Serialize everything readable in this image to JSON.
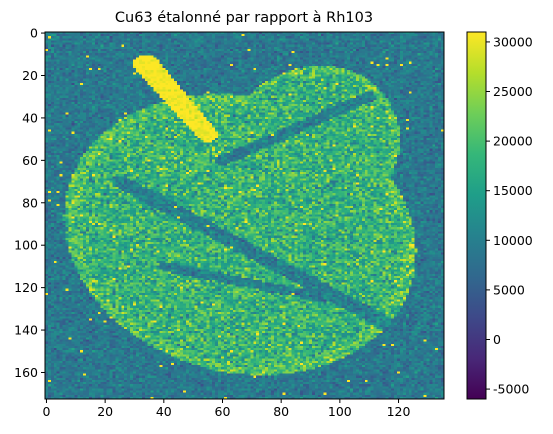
{
  "chart_data": {
    "type": "heatmap",
    "title": "Cu63 étalonné par rapport à Rh103",
    "xlabel": "",
    "ylabel": "",
    "image_shape": {
      "rows": 173,
      "cols": 136
    },
    "x_ticks": [
      0,
      20,
      40,
      60,
      80,
      100,
      120
    ],
    "y_ticks": [
      0,
      20,
      40,
      60,
      80,
      100,
      120,
      140,
      160
    ],
    "xlim": [
      -0.5,
      135.5
    ],
    "ylim": [
      172.5,
      -0.5
    ],
    "grid": false,
    "colormap": "viridis",
    "colorbar": {
      "range": [
        -6000,
        31000
      ],
      "ticks": [
        -5000,
        0,
        5000,
        10000,
        15000,
        20000,
        25000,
        30000
      ]
    },
    "value_levels": {
      "background": 9000,
      "leaf_interior": 18000,
      "leaf_bright_wedge": 31000,
      "vein": 10000
    }
  },
  "colors": {
    "viridis_stops": [
      "#440154",
      "#482878",
      "#3e4989",
      "#31688e",
      "#26828e",
      "#1f9e89",
      "#35b779",
      "#6ece58",
      "#b5de2b",
      "#fde725"
    ]
  }
}
